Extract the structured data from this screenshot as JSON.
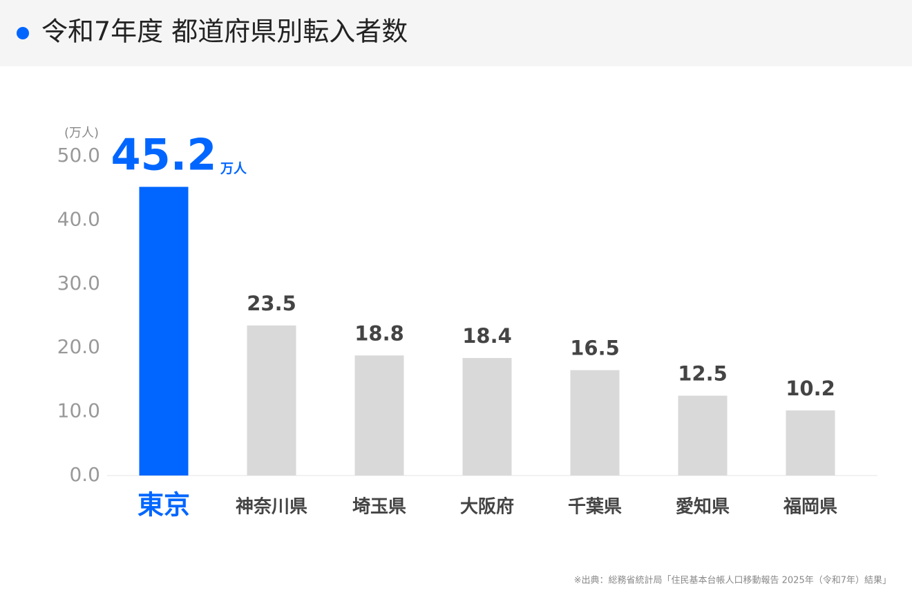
{
  "chart_data": {
    "type": "bar",
    "title": "令和7年度 都道府県別転入者数",
    "y_unit": "(万人)",
    "categories": [
      "東京",
      "神奈川県",
      "埼玉県",
      "大阪府",
      "千葉県",
      "愛知県",
      "福岡県"
    ],
    "values": [
      45.2,
      23.5,
      18.8,
      18.4,
      16.5,
      12.5,
      10.2
    ],
    "highlight_unit": "万人",
    "color": "#d9d9d9",
    "highlight_color": "#0066ff",
    "highlight_index": 0,
    "ylim": [
      0,
      50
    ],
    "yticks": [
      {
        "value": 0,
        "label": "0.0"
      },
      {
        "value": 10,
        "label": "10.0"
      },
      {
        "value": 20,
        "label": "20.0"
      },
      {
        "value": 30,
        "label": "30.0"
      },
      {
        "value": 40,
        "label": "40.0"
      },
      {
        "value": 50,
        "label": "50.0"
      }
    ],
    "grid": false,
    "source": "※出典：総務省統計局「住民基本台帳人口移動報告 2025年（令和7年）結果」"
  }
}
